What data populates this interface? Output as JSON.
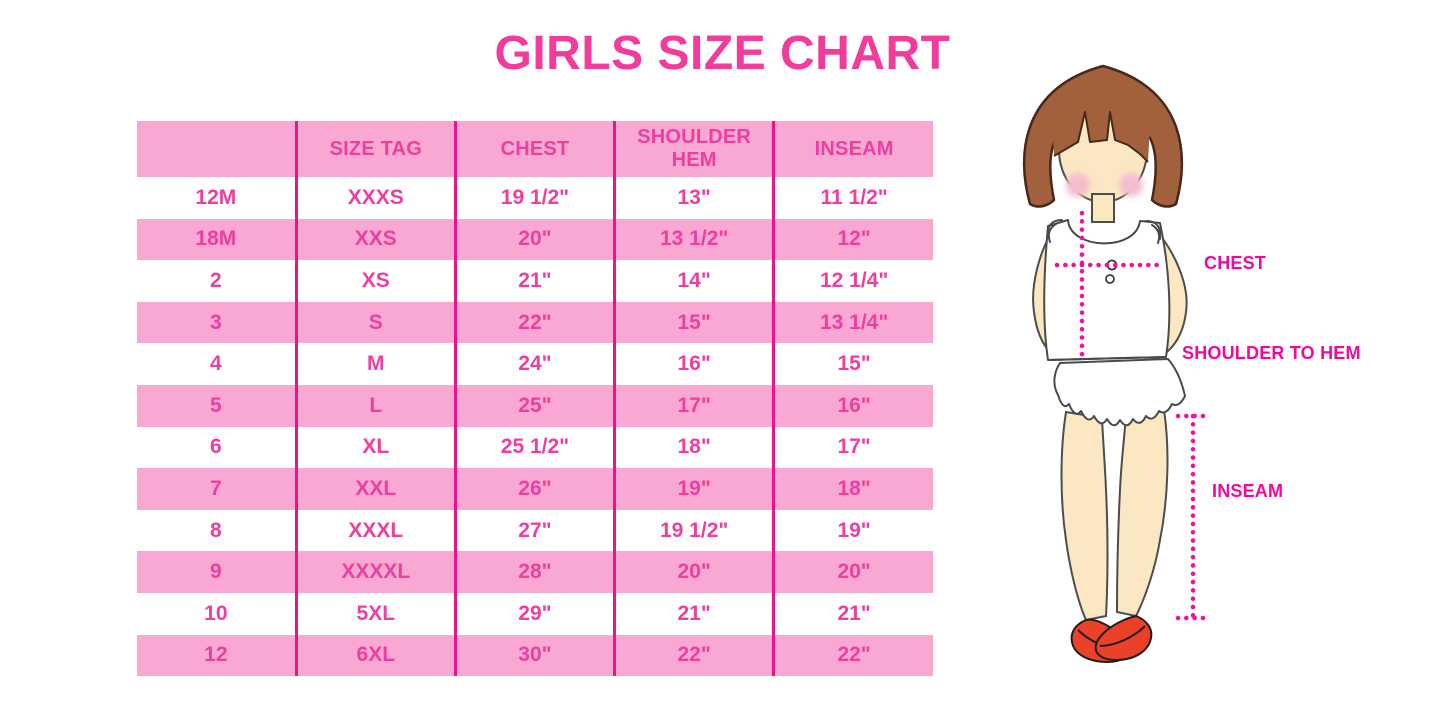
{
  "title": "GIRLS SIZE CHART",
  "chart_data": {
    "type": "table",
    "title": "GIRLS SIZE CHART",
    "columns": [
      "",
      "SIZE TAG",
      "CHEST",
      "SHOULDER HEM",
      "INSEAM"
    ],
    "rows": [
      [
        "12M",
        "XXXS",
        "19 1/2\"",
        "13\"",
        "11 1/2\""
      ],
      [
        "18M",
        "XXS",
        "20\"",
        "13 1/2\"",
        "12\""
      ],
      [
        "2",
        "XS",
        "21\"",
        "14\"",
        "12 1/4\""
      ],
      [
        "3",
        "S",
        "22\"",
        "15\"",
        "13 1/4\""
      ],
      [
        "4",
        "M",
        "24\"",
        "16\"",
        "15\""
      ],
      [
        "5",
        "L",
        "25\"",
        "17\"",
        "16\""
      ],
      [
        "6",
        "XL",
        "25 1/2\"",
        "18\"",
        "17\""
      ],
      [
        "7",
        "XXL",
        "26\"",
        "19\"",
        "18\""
      ],
      [
        "8",
        "XXXL",
        "27\"",
        "19 1/2\"",
        "19\""
      ],
      [
        "9",
        "XXXXL",
        "28\"",
        "20\"",
        "20\""
      ],
      [
        "10",
        "5XL",
        "29\"",
        "21\"",
        "21\""
      ],
      [
        "12",
        "6XL",
        "30\"",
        "22\"",
        "22\""
      ]
    ]
  },
  "figure": {
    "labels": {
      "chest": "CHEST",
      "shoulder_to_hem": "SHOULDER TO HEM",
      "inseam": "INSEAM"
    }
  },
  "colors": {
    "title_pink": "#f13c9b",
    "row_pink": "#f9a8d3",
    "grid_magenta": "#e9138c",
    "table_text_pink": "#ee3fa0",
    "label_magenta": "#f3089c",
    "dotted_line_pink": "#f3119b",
    "hair_brown": "#a2613c",
    "skin": "#fbe7c2",
    "shoe_red": "#ea4128"
  }
}
